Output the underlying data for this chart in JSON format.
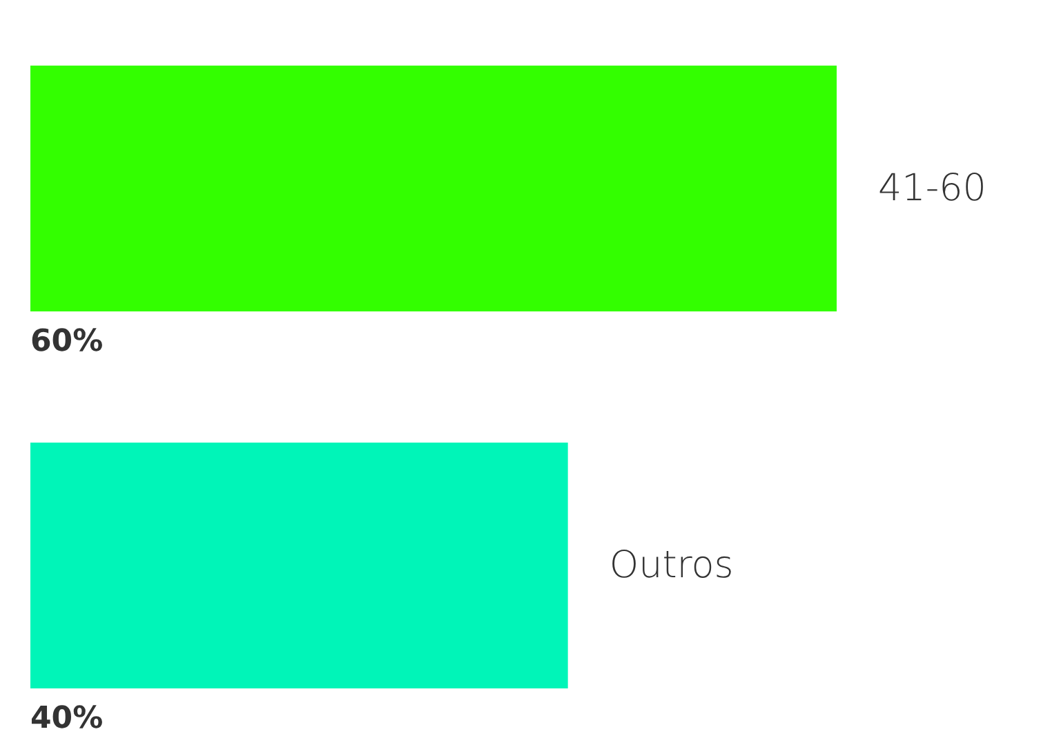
{
  "chart_data": {
    "type": "bar",
    "orientation": "horizontal",
    "categories": [
      "41-60",
      "Outros"
    ],
    "values": [
      60,
      40
    ],
    "colors": [
      "#33ff00",
      "#00f5b8"
    ],
    "value_labels": [
      "60%",
      "40%"
    ]
  }
}
